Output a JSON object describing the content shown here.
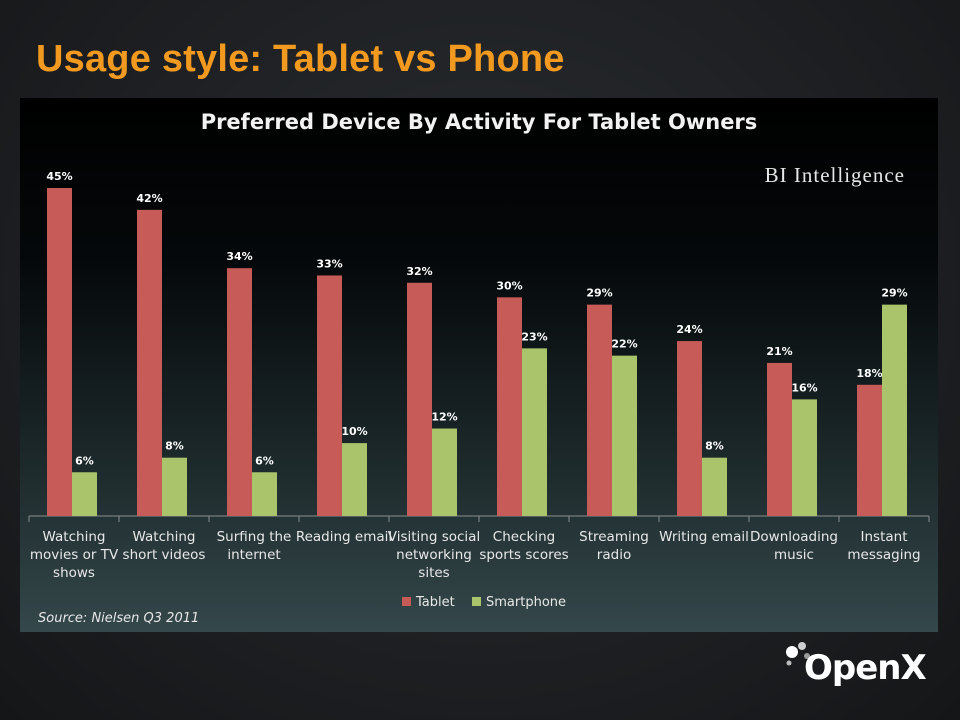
{
  "slide": {
    "title": "Usage style: Tablet vs Phone",
    "logo_text": "OpenX"
  },
  "colors": {
    "title": "#f29a1f",
    "tablet": "#c75b58",
    "smartphone": "#a9c46a"
  },
  "chart_data": {
    "type": "bar",
    "title": "Preferred Device By Activity For Tablet Owners",
    "brand": "BI Intelligence",
    "source": "Source: Nielsen Q3 2011",
    "categories": [
      [
        "Watching",
        "movies or TV",
        "shows"
      ],
      [
        "Watching",
        "short videos"
      ],
      [
        "Surfing the",
        "internet"
      ],
      [
        "Reading email"
      ],
      [
        "Visiting social",
        "networking",
        "sites"
      ],
      [
        "Checking",
        "sports scores"
      ],
      [
        "Streaming",
        "radio"
      ],
      [
        "Writing email"
      ],
      [
        "Downloading",
        "music"
      ],
      [
        "Instant",
        "messaging"
      ]
    ],
    "series": [
      {
        "name": "Tablet",
        "values": [
          45,
          42,
          34,
          33,
          32,
          30,
          29,
          24,
          21,
          18
        ]
      },
      {
        "name": "Smartphone",
        "values": [
          6,
          8,
          6,
          10,
          12,
          23,
          22,
          8,
          16,
          29
        ]
      }
    ],
    "value_suffix": "%",
    "ylim": [
      0,
      45
    ],
    "legend_position": "bottom-center",
    "grid": false
  }
}
